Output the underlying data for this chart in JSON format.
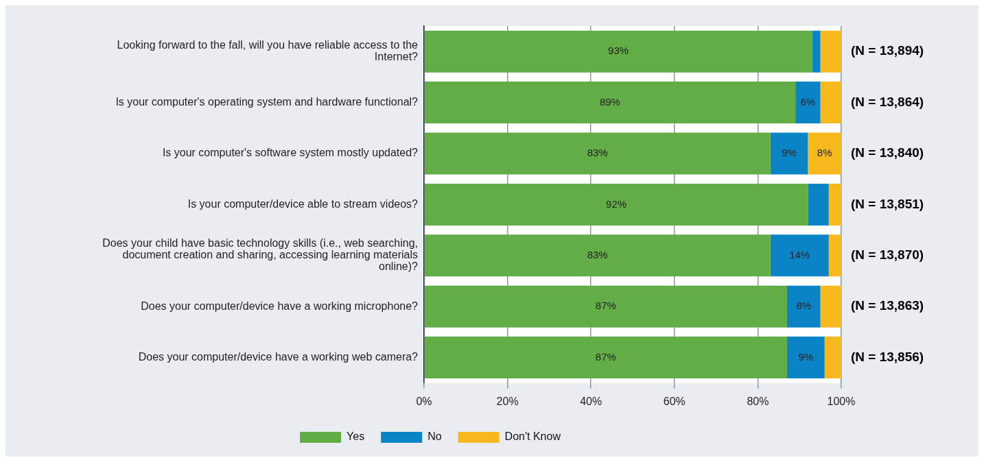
{
  "chart_data": {
    "type": "bar",
    "orientation": "horizontal",
    "stacked": true,
    "categories": [
      "Looking forward to the fall, will you have reliable access to the Internet?",
      "Is your computer's operating system and hardware functional?",
      "Is your computer's software system mostly updated?",
      "Is your computer/device able to stream videos?",
      "Does your child have basic technology skills (i.e., web searching, document creation and sharing, accessing learning materials online)?",
      "Does your computer/device have a working microphone?",
      "Does your computer/device have a working web camera?"
    ],
    "series": [
      {
        "name": "Yes",
        "color": "#62ad46",
        "values": [
          93,
          89,
          83,
          92,
          83,
          87,
          87
        ],
        "value_labels": [
          "93%",
          "89%",
          "83%",
          "92%",
          "83%",
          "87%",
          "87%"
        ]
      },
      {
        "name": "No",
        "color": "#0b84c6",
        "values": [
          2,
          6,
          9,
          5,
          14,
          8,
          9
        ],
        "value_labels": [
          null,
          "6%",
          "9%",
          null,
          "14%",
          "8%",
          "9%"
        ]
      },
      {
        "name": "Don't Know",
        "color": "#f6b81c",
        "values": [
          5,
          5,
          8,
          3,
          3,
          5,
          4
        ],
        "value_labels": [
          null,
          null,
          "8%",
          null,
          null,
          null,
          null
        ]
      }
    ],
    "xlim": [
      0,
      100
    ],
    "xticks": [
      {
        "value": 0,
        "label": "0%"
      },
      {
        "value": 20,
        "label": "20%"
      },
      {
        "value": 40,
        "label": "40%"
      },
      {
        "value": 60,
        "label": "60%"
      },
      {
        "value": 80,
        "label": "80%"
      },
      {
        "value": 100,
        "label": "100%"
      }
    ],
    "grid": "x",
    "legend": "bottom",
    "annotations": [
      "(N = 13,894)",
      "(N = 13,864)",
      "(N = 13,840)",
      "(N = 13,851)",
      "(N = 13,870)",
      "(N = 13,863)",
      "(N = 13,856)"
    ]
  }
}
